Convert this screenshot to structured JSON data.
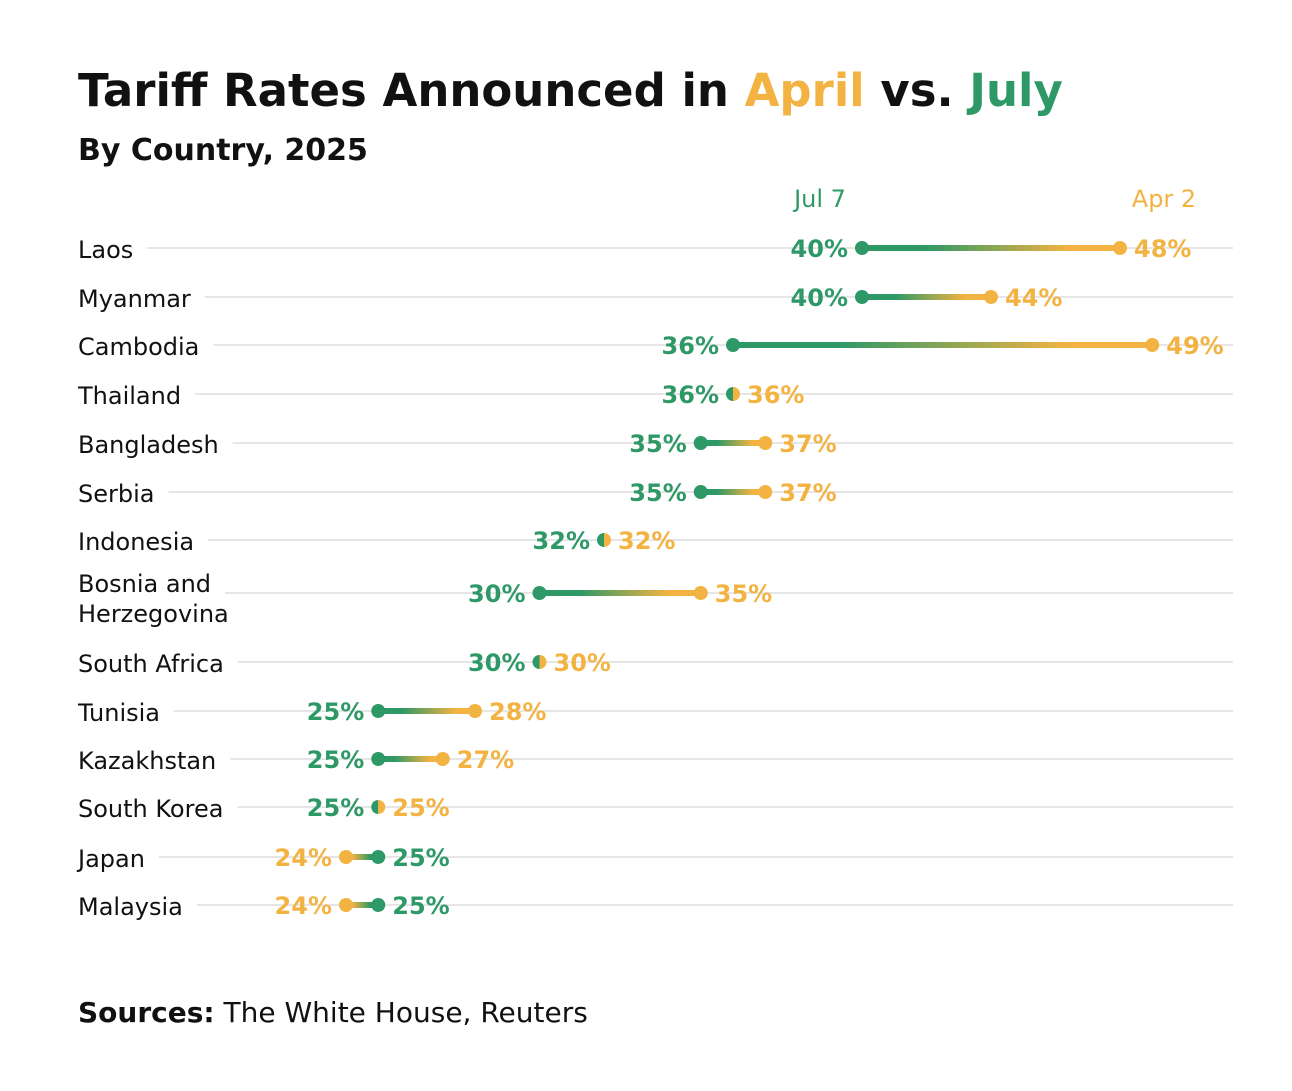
{
  "chart_data": {
    "type": "dumbbell",
    "title": {
      "part1": "Tariff Rates Announced in ",
      "april": "April",
      "part2": " vs. ",
      "july": "July"
    },
    "subtitle": "By Country, 2025",
    "series": [
      {
        "name": "Jul 7",
        "key": "jul",
        "color": "#2e9966"
      },
      {
        "name": "Apr 2",
        "key": "apr",
        "color": "#f2b342"
      }
    ],
    "unit": "%",
    "categories": [
      "Laos",
      "Myanmar",
      "Cambodia",
      "Thailand",
      "Bangladesh",
      "Serbia",
      "Indonesia",
      "Bosnia and Herzegovina",
      "South Africa",
      "Tunisia",
      "Kazakhstan",
      "South Korea",
      "Japan",
      "Malaysia"
    ],
    "category_lines": [
      [
        "Laos"
      ],
      [
        "Myanmar"
      ],
      [
        "Cambodia"
      ],
      [
        "Thailand"
      ],
      [
        "Bangladesh"
      ],
      [
        "Serbia"
      ],
      [
        "Indonesia"
      ],
      [
        "Bosnia and",
        "Herzegovina"
      ],
      [
        "South Africa"
      ],
      [
        "Tunisia"
      ],
      [
        "Kazakhstan"
      ],
      [
        "South Korea"
      ],
      [
        "Japan"
      ],
      [
        "Malaysia"
      ]
    ],
    "apr": [
      48,
      44,
      49,
      36,
      37,
      37,
      32,
      35,
      30,
      28,
      27,
      25,
      24,
      24
    ],
    "jul": [
      40,
      40,
      36,
      36,
      35,
      35,
      32,
      30,
      30,
      25,
      25,
      25,
      25,
      25
    ],
    "xlim": [
      24,
      49
    ],
    "grid": true
  },
  "footer": {
    "bold": "Sources:",
    "text": " The White House, Reuters"
  }
}
